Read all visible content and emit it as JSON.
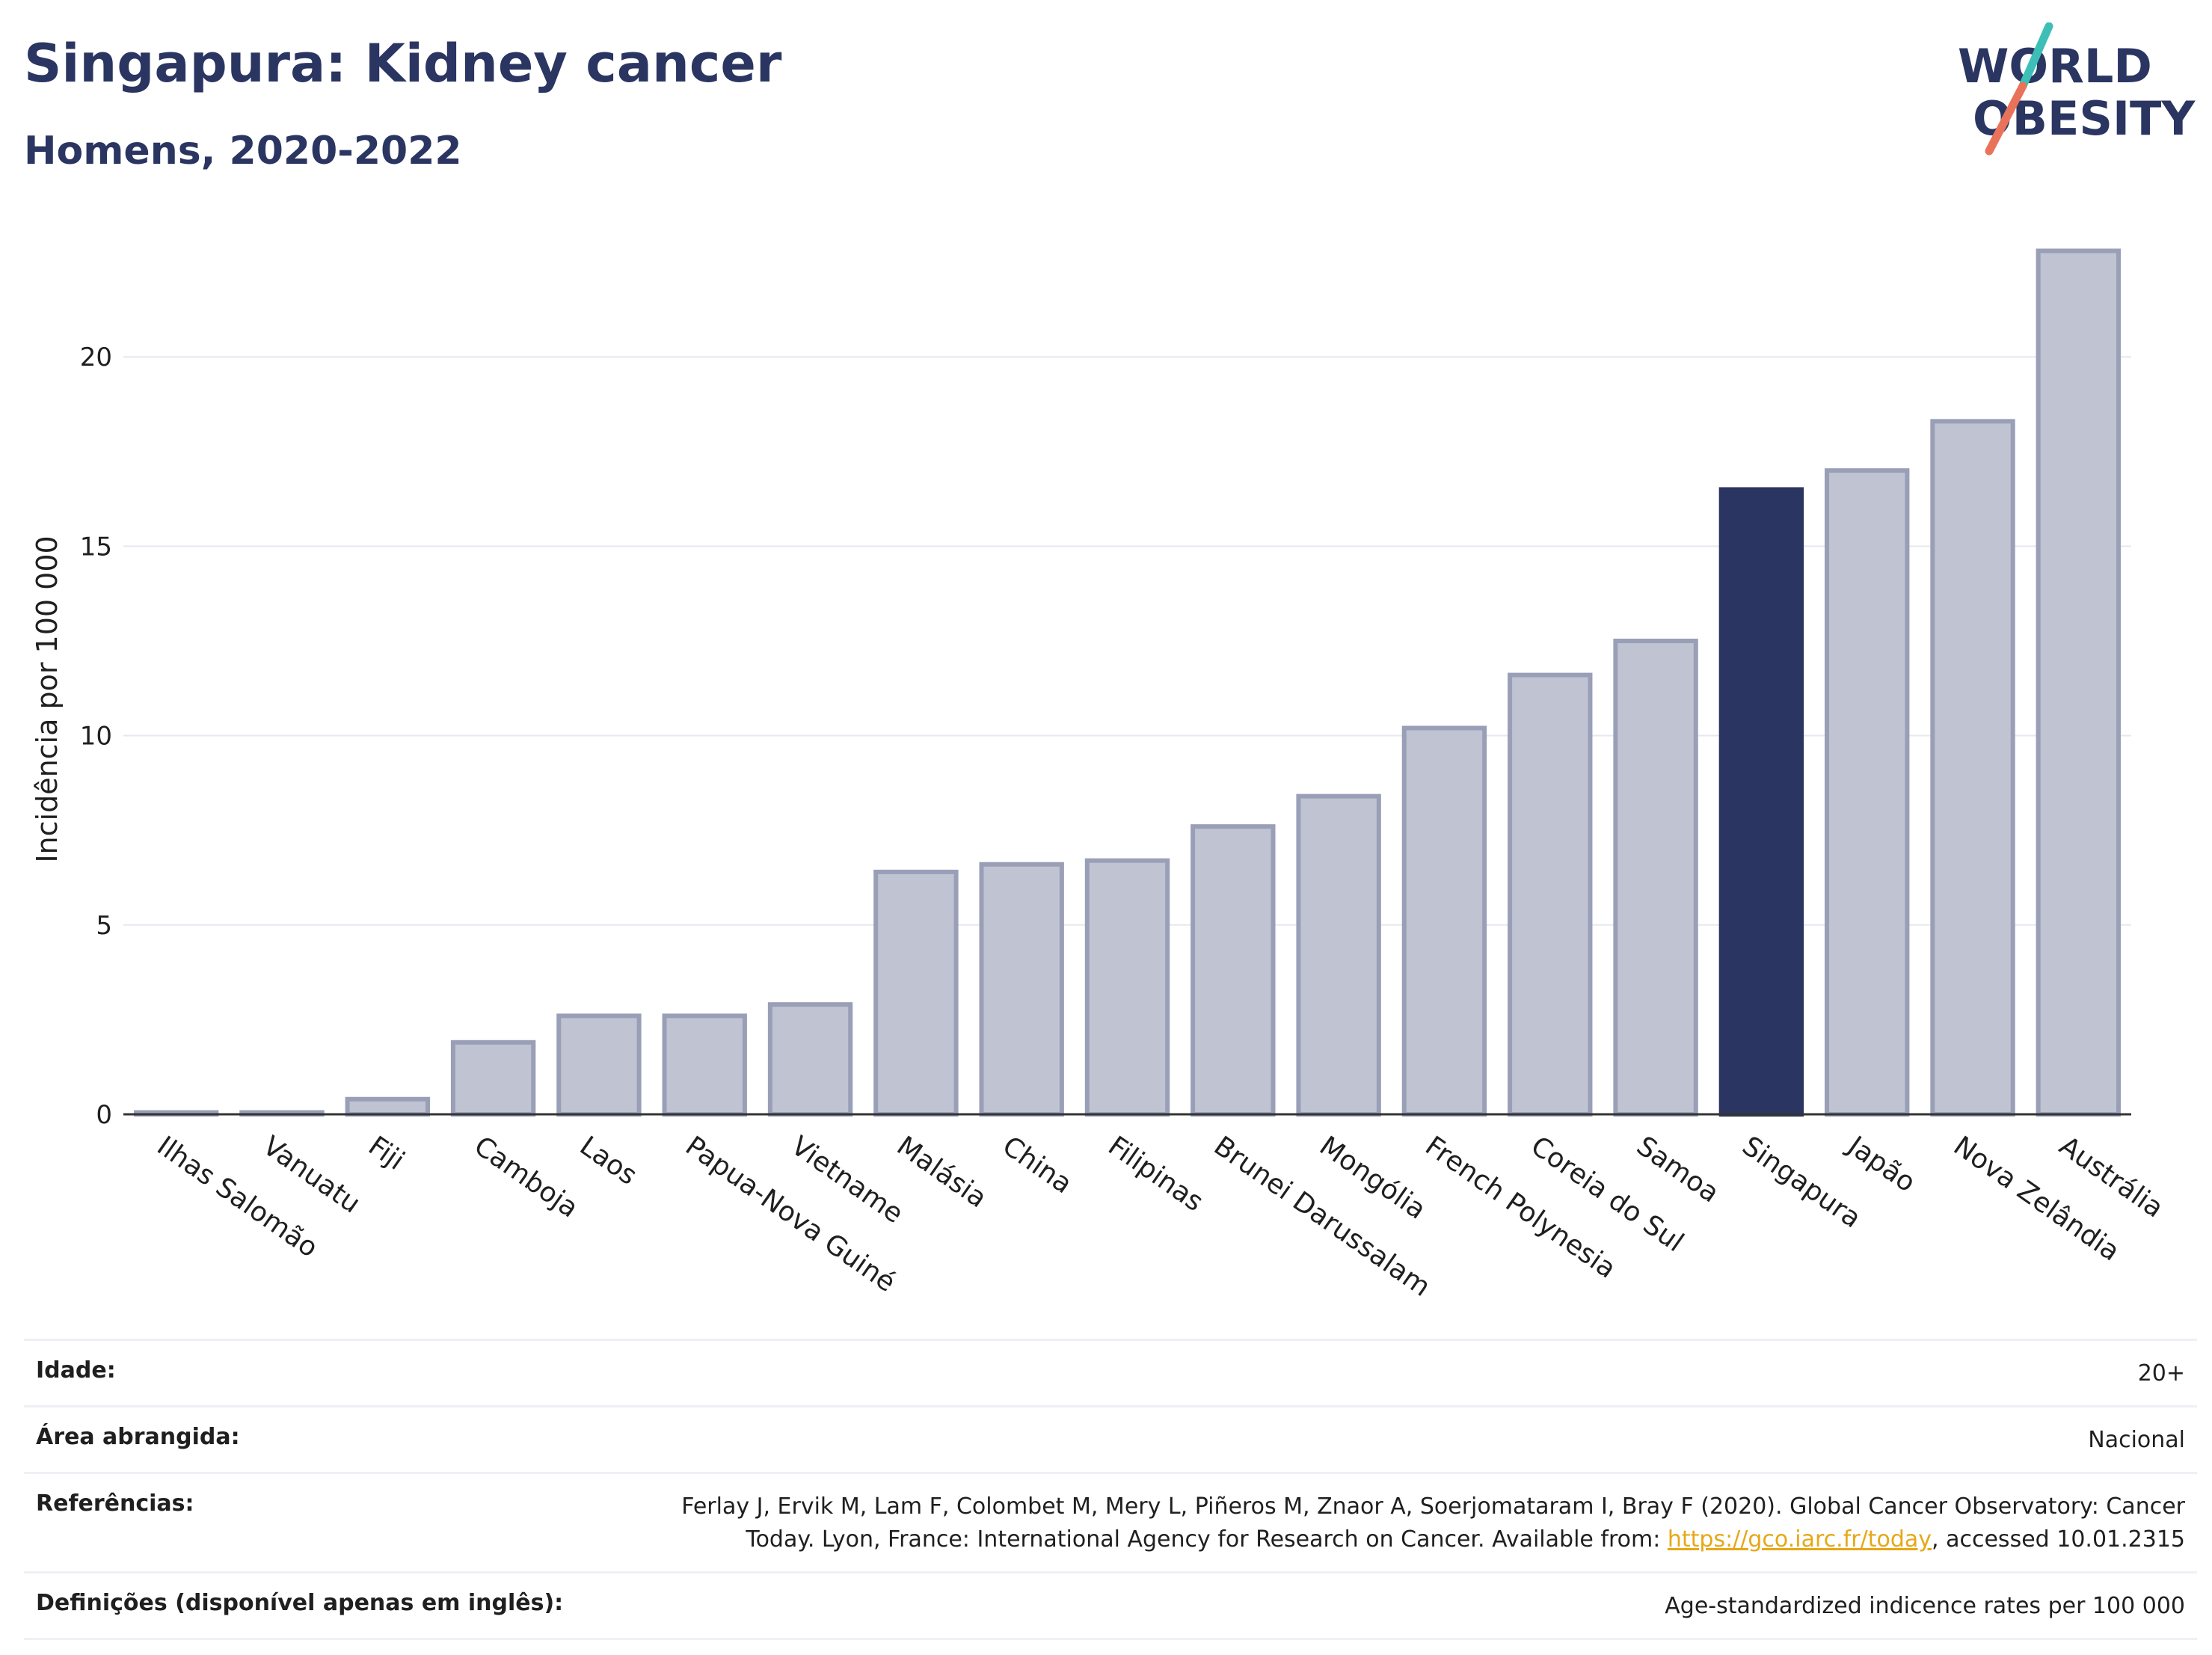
{
  "header": {
    "title": "Singapura: Kidney cancer",
    "subtitle": "Homens, 2020-2022"
  },
  "logo": {
    "line1": "WORLD",
    "line2": "OBESITY",
    "colors": {
      "text": "#2b3561",
      "slash_top": "#3dbfb8",
      "slash_bottom": "#e8735a"
    }
  },
  "chart_data": {
    "type": "bar",
    "ylabel": "Incidência por 100 000",
    "ylim": [
      0,
      23.5
    ],
    "yticks": [
      0,
      5,
      10,
      15,
      20
    ],
    "grid": true,
    "highlight": "Singapura",
    "colors": {
      "bar": "#c0c3d1",
      "bar_border": "#9a9fb8",
      "highlight": "#2b3561",
      "grid": "#e6e8ef",
      "axis": "#333333"
    },
    "categories": [
      "Ilhas Salomão",
      "Vanuatu",
      "Fiji",
      "Camboja",
      "Laos",
      "Papua-Nova Guiné",
      "Vietname",
      "Malásia",
      "China",
      "Filipinas",
      "Brunei Darussalam",
      "Mongólia",
      "French Polynesia",
      "Coreia do Sul",
      "Samoa",
      "Singapura",
      "Japão",
      "Nova Zelândia",
      "Austrália"
    ],
    "values": [
      0.05,
      0.05,
      0.4,
      1.9,
      2.6,
      2.6,
      2.9,
      6.4,
      6.6,
      6.7,
      7.6,
      8.4,
      10.2,
      11.6,
      12.5,
      16.5,
      17.0,
      18.3,
      22.8
    ]
  },
  "meta": {
    "rows": [
      {
        "key": "Idade:",
        "value": "20+"
      },
      {
        "key": "Área abrangida:",
        "value": "Nacional"
      },
      {
        "key": "Referências:",
        "value_line1": "Ferlay J, Ervik M, Lam F, Colombet M, Mery L, Piñeros M, Znaor A, Soerjomataram I, Bray F (2020). Global Cancer Observatory: Cancer",
        "value_line2_pre": "Today. Lyon, France: International Agency for Research on Cancer. Available from: ",
        "link": "https://gco.iarc.fr/today",
        "value_line2_post": ", accessed 10.01.2315"
      },
      {
        "key": "Definições (disponível apenas em inglês):",
        "value": "Age-standardized indicence rates per 100 000"
      }
    ]
  }
}
